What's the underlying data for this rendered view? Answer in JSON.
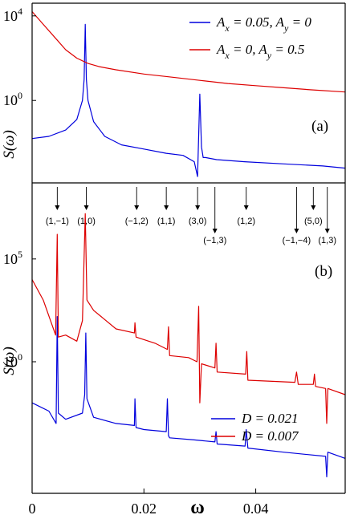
{
  "chart_data": [
    {
      "panel": "a",
      "type": "line",
      "panel_label": "(a)",
      "xlabel": "",
      "ylabel": "S(ω)",
      "yscale": "log",
      "xlim": [
        0,
        0.056
      ],
      "ylim_exp": [
        -3.9,
        4.6
      ],
      "ytick_labels": [
        {
          "base": "10",
          "exp": "4",
          "value_exp": 4
        },
        {
          "base": "10",
          "exp": "0",
          "value_exp": 0
        }
      ],
      "legend": {
        "placement": "top-right",
        "entries": [
          {
            "text": "A",
            "sub1": "x",
            "mid": " = 0.05, A",
            "sub2": "y",
            "end": " = 0",
            "color": "#0000dd"
          },
          {
            "text": "A",
            "sub1": "x",
            "mid": " = 0, A",
            "sub2": "y",
            "end": " = 0.5",
            "color": "#dd0000"
          }
        ]
      },
      "series": [
        {
          "color": "#0000dd",
          "x": [
            0.0,
            0.003,
            0.006,
            0.008,
            0.009,
            0.0093,
            0.0095,
            0.0097,
            0.01,
            0.011,
            0.013,
            0.016,
            0.02,
            0.024,
            0.027,
            0.029,
            0.0296,
            0.03,
            0.0303,
            0.0306,
            0.031,
            0.033,
            0.038,
            0.045,
            0.052,
            0.056
          ],
          "y_exp": [
            -1.8,
            -1.7,
            -1.4,
            -0.9,
            0.0,
            1.0,
            3.6,
            1.0,
            0.0,
            -1.0,
            -1.7,
            -2.1,
            -2.3,
            -2.5,
            -2.6,
            -2.9,
            -3.6,
            0.3,
            -2.2,
            -2.7,
            -2.7,
            -2.8,
            -2.9,
            -3.0,
            -3.1,
            -3.2
          ]
        },
        {
          "color": "#dd0000",
          "x": [
            0.0,
            0.002,
            0.004,
            0.006,
            0.008,
            0.01,
            0.012,
            0.015,
            0.02,
            0.025,
            0.03,
            0.035,
            0.04,
            0.045,
            0.05,
            0.056
          ],
          "y_exp": [
            4.2,
            3.6,
            3.0,
            2.4,
            2.0,
            1.75,
            1.6,
            1.45,
            1.25,
            1.1,
            0.95,
            0.8,
            0.7,
            0.6,
            0.5,
            0.4
          ]
        }
      ]
    },
    {
      "panel": "b",
      "type": "line",
      "panel_label": "(b)",
      "xlabel": "ω",
      "ylabel": "S(ω)",
      "yscale": "log",
      "xlim": [
        0,
        0.056
      ],
      "ylim_exp": [
        -6.4,
        8.7
      ],
      "xtick_labels": [
        {
          "label": "0",
          "value": 0
        },
        {
          "label": "0.02",
          "value": 0.02
        },
        {
          "label": "0.04",
          "value": 0.04
        }
      ],
      "ytick_labels": [
        {
          "base": "10",
          "exp": "5",
          "value_exp": 5
        },
        {
          "base": "10",
          "exp": "0",
          "value_exp": 0
        }
      ],
      "legend": {
        "placement": "bottom-right",
        "entries": [
          {
            "text": "D = 0.021",
            "color": "#0000dd"
          },
          {
            "text": "D = 0.007",
            "color": "#dd0000"
          }
        ]
      },
      "annotations": [
        {
          "label": "(1,−1)",
          "x": 0.0045,
          "row": "upper"
        },
        {
          "label": "(1,0)",
          "x": 0.0097,
          "row": "upper"
        },
        {
          "label": "(−1,2)",
          "x": 0.0187,
          "row": "upper"
        },
        {
          "label": "(1,1)",
          "x": 0.024,
          "row": "upper"
        },
        {
          "label": "(3,0)",
          "x": 0.0296,
          "row": "upper"
        },
        {
          "label": "(−1,3)",
          "x": 0.0327,
          "row": "lower"
        },
        {
          "label": "(1,2)",
          "x": 0.0383,
          "row": "upper"
        },
        {
          "label": "(−1,−4)",
          "x": 0.0473,
          "row": "lower"
        },
        {
          "label": "(5,0)",
          "x": 0.0503,
          "row": "upper"
        },
        {
          "label": "(1,3)",
          "x": 0.0528,
          "row": "lower"
        }
      ],
      "series": [
        {
          "name": "D = 0.021",
          "color": "#0000dd",
          "x": [
            0.0,
            0.003,
            0.0043,
            0.0045,
            0.0047,
            0.006,
            0.009,
            0.0094,
            0.0096,
            0.0098,
            0.011,
            0.015,
            0.0183,
            0.0184,
            0.0186,
            0.02,
            0.024,
            0.0242,
            0.0244,
            0.0246,
            0.029,
            0.0327,
            0.0329,
            0.0331,
            0.0381,
            0.0383,
            0.0386,
            0.045,
            0.0525,
            0.0527,
            0.0529,
            0.056
          ],
          "y_exp": [
            -2.0,
            -2.4,
            -3.0,
            2.2,
            -2.5,
            -2.8,
            -2.5,
            -1.6,
            1.4,
            -1.8,
            -2.7,
            -3.0,
            -3.1,
            -1.8,
            -3.2,
            -3.3,
            -3.4,
            -1.8,
            -3.6,
            -3.7,
            -3.8,
            -3.9,
            -3.4,
            -4.0,
            -4.1,
            -3.3,
            -4.2,
            -4.4,
            -4.6,
            -5.6,
            -4.4,
            -4.7
          ]
        },
        {
          "name": "D = 0.007",
          "color": "#dd0000",
          "x": [
            0.0,
            0.002,
            0.0042,
            0.0045,
            0.0047,
            0.006,
            0.008,
            0.009,
            0.0095,
            0.0098,
            0.011,
            0.015,
            0.0183,
            0.0184,
            0.0186,
            0.022,
            0.0242,
            0.0244,
            0.0246,
            0.028,
            0.0295,
            0.0298,
            0.03,
            0.0303,
            0.0327,
            0.0329,
            0.0331,
            0.0382,
            0.0384,
            0.0386,
            0.047,
            0.0473,
            0.0476,
            0.0503,
            0.0505,
            0.0507,
            0.0525,
            0.0527,
            0.0529,
            0.056
          ],
          "y_exp": [
            4.0,
            3.0,
            1.3,
            6.2,
            1.2,
            1.3,
            1.0,
            2.0,
            7.2,
            3.0,
            2.5,
            1.6,
            1.4,
            1.9,
            1.2,
            0.9,
            0.6,
            1.7,
            0.3,
            0.2,
            0.0,
            2.7,
            -2.0,
            -0.1,
            -0.3,
            0.9,
            -0.5,
            -0.6,
            0.5,
            -0.9,
            -1.0,
            -0.5,
            -1.1,
            -1.1,
            -0.6,
            -1.2,
            -1.3,
            -3.0,
            -1.3,
            -1.6
          ]
        }
      ]
    }
  ]
}
